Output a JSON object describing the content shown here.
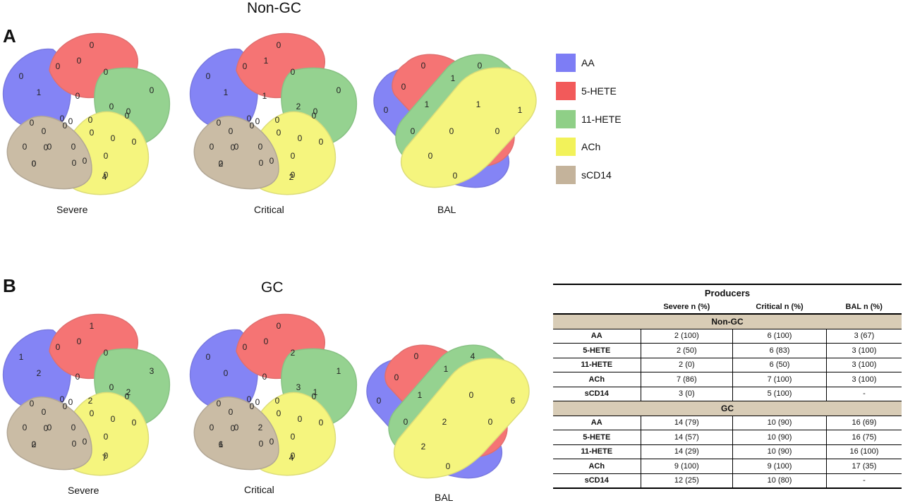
{
  "panels": {
    "A": {
      "letter": "A",
      "title": "Non-GC",
      "severe": {
        "label": "Severe",
        "numbers": [
          "0",
          "0",
          "0",
          "0",
          "0",
          "0",
          "1",
          "0",
          "0",
          "0",
          "0",
          "0",
          "0",
          "0",
          "0",
          "0",
          "0",
          "0",
          "0",
          "0",
          "0",
          "0",
          "0",
          "0",
          "0",
          "0",
          "0",
          "0",
          "0",
          "4",
          "0"
        ]
      },
      "critical": {
        "label": "Critical",
        "numbers": [
          "0",
          "0",
          "0",
          "0",
          "0",
          "0",
          "1",
          "1",
          "0",
          "0",
          "0",
          "0",
          "2",
          "0",
          "1",
          "0",
          "0",
          "0",
          "0",
          "0",
          "0",
          "0",
          "0",
          "0",
          "0",
          "0",
          "0",
          "0",
          "0",
          "2",
          "2"
        ]
      },
      "bal": {
        "label": "BAL",
        "numbers": [
          "0",
          "0",
          "0",
          "1",
          "0",
          "1",
          "1",
          "1",
          "0",
          "0",
          "0",
          "0",
          "0"
        ]
      }
    },
    "B": {
      "letter": "B",
      "title": "GC",
      "severe": {
        "label": "Severe",
        "numbers": [
          "1",
          "1",
          "3",
          "0",
          "0",
          "0",
          "2",
          "0",
          "0",
          "2",
          "2",
          "0",
          "0",
          "0",
          "0",
          "0",
          "0",
          "0",
          "0",
          "0",
          "0",
          "0",
          "0",
          "0",
          "0",
          "0",
          "0",
          "0",
          "0",
          "7",
          "2"
        ]
      },
      "critical": {
        "label": "Critical",
        "numbers": [
          "0",
          "0",
          "1",
          "0",
          "1",
          "0",
          "0",
          "0",
          "2",
          "1",
          "0",
          "0",
          "3",
          "0",
          "0",
          "0",
          "0",
          "0",
          "0",
          "0",
          "0",
          "0",
          "2",
          "0",
          "0",
          "0",
          "0",
          "0",
          "0",
          "4",
          "6"
        ]
      },
      "bal": {
        "label": "BAL",
        "numbers": [
          "0",
          "0",
          "4",
          "6",
          "0",
          "1",
          "1",
          "0",
          "2",
          "0",
          "0",
          "2",
          "0"
        ]
      }
    }
  },
  "legend": [
    {
      "label": "AA",
      "color": "#7d7df5"
    },
    {
      "label": "5-HETE",
      "color": "#f25a5a"
    },
    {
      "label": "11-HETE",
      "color": "#8fcf87"
    },
    {
      "label": "ACh",
      "color": "#f2f25a"
    },
    {
      "label": "sCD14",
      "color": "#c4b39b"
    }
  ],
  "table": {
    "title": "Producers",
    "headers": [
      "",
      "Severe n (%)",
      "Critical n (%)",
      "BAL n (%)"
    ],
    "groups": [
      {
        "name": "Non-GC",
        "rows": [
          [
            "AA",
            "2 (100)",
            "6 (100)",
            "3 (67)"
          ],
          [
            "5-HETE",
            "2 (50)",
            "6 (83)",
            "3 (100)"
          ],
          [
            "11-HETE",
            "2 (0)",
            "6 (50)",
            "3 (100)"
          ],
          [
            "ACh",
            "7 (86)",
            "7 (100)",
            "3 (100)"
          ],
          [
            "sCD14",
            "3 (0)",
            "5 (100)",
            "-"
          ]
        ]
      },
      {
        "name": "GC",
        "rows": [
          [
            "AA",
            "14 (79)",
            "10 (90)",
            "16 (69)"
          ],
          [
            "5-HETE",
            "14 (57)",
            "10 (90)",
            "16 (75)"
          ],
          [
            "11-HETE",
            "14 (29)",
            "10 (90)",
            "16 (100)"
          ],
          [
            "ACh",
            "9 (100)",
            "9 (100)",
            "17 (35)"
          ],
          [
            "sCD14",
            "12 (25)",
            "10 (80)",
            "-"
          ]
        ]
      }
    ]
  }
}
